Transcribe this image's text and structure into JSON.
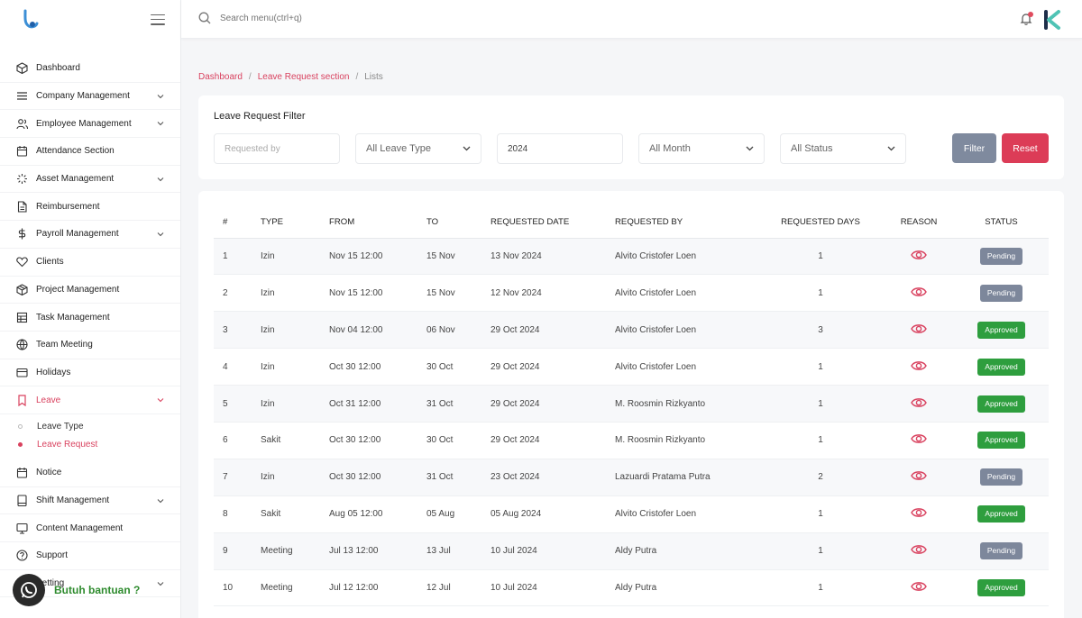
{
  "search": {
    "placeholder": "Search menu(ctrl+q)"
  },
  "sidebar": {
    "items": [
      {
        "label": "Dashboard",
        "icon": "cube-icon"
      },
      {
        "label": "Company Management",
        "icon": "list-icon",
        "chevron": true
      },
      {
        "label": "Employee Management",
        "icon": "users-icon",
        "chevron": true
      },
      {
        "label": "Attendance Section",
        "icon": "calendar-icon"
      },
      {
        "label": "Asset Management",
        "icon": "loader-icon",
        "chevron": true
      },
      {
        "label": "Reimbursement",
        "icon": "file-icon"
      },
      {
        "label": "Payroll Management",
        "icon": "dollar-icon",
        "chevron": true
      },
      {
        "label": "Clients",
        "icon": "heart-icon"
      },
      {
        "label": "Project Management",
        "icon": "box-icon"
      },
      {
        "label": "Task Management",
        "icon": "grid-icon"
      },
      {
        "label": "Team Meeting",
        "icon": "globe-icon"
      },
      {
        "label": "Holidays",
        "icon": "card-icon"
      },
      {
        "label": "Leave",
        "icon": "bookmark-icon",
        "chevron": true,
        "active": true
      }
    ],
    "leave_sub": [
      {
        "label": "Leave Type"
      },
      {
        "label": "Leave Request",
        "active": true
      }
    ],
    "items_after": [
      {
        "label": "Notice",
        "icon": "calendar-icon"
      },
      {
        "label": "Shift Management",
        "icon": "tablet-icon",
        "chevron": true
      },
      {
        "label": "Content Management",
        "icon": "monitor-icon"
      },
      {
        "label": "Support",
        "icon": "help-icon"
      },
      {
        "label": "Setting",
        "icon": "settings-icon",
        "chevron": true
      }
    ]
  },
  "whatsapp": {
    "label": "Butuh bantuan ?"
  },
  "breadcrumb": {
    "items": [
      "Dashboard",
      "Leave Request section"
    ],
    "current": "Lists",
    "separator": "/"
  },
  "filter": {
    "title": "Leave Request Filter",
    "requested_by_placeholder": "Requested by",
    "leave_type": "All Leave Type",
    "year": "2024",
    "month": "All Month",
    "status": "All Status",
    "filter_label": "Filter",
    "reset_label": "Reset"
  },
  "table": {
    "headers": [
      "#",
      "TYPE",
      "FROM",
      "TO",
      "REQUESTED DATE",
      "REQUESTED BY",
      "REQUESTED DAYS",
      "REASON",
      "STATUS"
    ],
    "rows": [
      {
        "num": "1",
        "type": "Izin",
        "from": "Nov 15 12:00",
        "to": "15 Nov",
        "requested_date": "13 Nov 2024",
        "requested_by": "Alvito Cristofer Loen",
        "days": "1",
        "status": "Pending"
      },
      {
        "num": "2",
        "type": "Izin",
        "from": "Nov 15 12:00",
        "to": "15 Nov",
        "requested_date": "12 Nov 2024",
        "requested_by": "Alvito Cristofer Loen",
        "days": "1",
        "status": "Pending"
      },
      {
        "num": "3",
        "type": "Izin",
        "from": "Nov 04 12:00",
        "to": "06 Nov",
        "requested_date": "29 Oct 2024",
        "requested_by": "Alvito Cristofer Loen",
        "days": "3",
        "status": "Approved"
      },
      {
        "num": "4",
        "type": "Izin",
        "from": "Oct 30 12:00",
        "to": "30 Oct",
        "requested_date": "29 Oct 2024",
        "requested_by": "Alvito Cristofer Loen",
        "days": "1",
        "status": "Approved"
      },
      {
        "num": "5",
        "type": "Izin",
        "from": "Oct 31 12:00",
        "to": "31 Oct",
        "requested_date": "29 Oct 2024",
        "requested_by": "M. Roosmin Rizkyanto",
        "days": "1",
        "status": "Approved"
      },
      {
        "num": "6",
        "type": "Sakit",
        "from": "Oct 30 12:00",
        "to": "30 Oct",
        "requested_date": "29 Oct 2024",
        "requested_by": "M. Roosmin Rizkyanto",
        "days": "1",
        "status": "Approved"
      },
      {
        "num": "7",
        "type": "Izin",
        "from": "Oct 30 12:00",
        "to": "31 Oct",
        "requested_date": "23 Oct 2024",
        "requested_by": "Lazuardi Pratama Putra",
        "days": "2",
        "status": "Pending"
      },
      {
        "num": "8",
        "type": "Sakit",
        "from": "Aug 05 12:00",
        "to": "05 Aug",
        "requested_date": "05 Aug 2024",
        "requested_by": "Alvito Cristofer Loen",
        "days": "1",
        "status": "Approved"
      },
      {
        "num": "9",
        "type": "Meeting",
        "from": "Jul 13 12:00",
        "to": "13 Jul",
        "requested_date": "10 Jul 2024",
        "requested_by": "Aldy Putra",
        "days": "1",
        "status": "Pending"
      },
      {
        "num": "10",
        "type": "Meeting",
        "from": "Jul 12 12:00",
        "to": "12 Jul",
        "requested_date": "10 Jul 2024",
        "requested_by": "Aldy Putra",
        "days": "1",
        "status": "Approved"
      }
    ]
  },
  "colors": {
    "accent": "#d9425f",
    "pending": "#7d879b",
    "approved": "#2e9e3e",
    "filter_button": "#7f8a9e",
    "reset_button": "#dc3c57"
  }
}
